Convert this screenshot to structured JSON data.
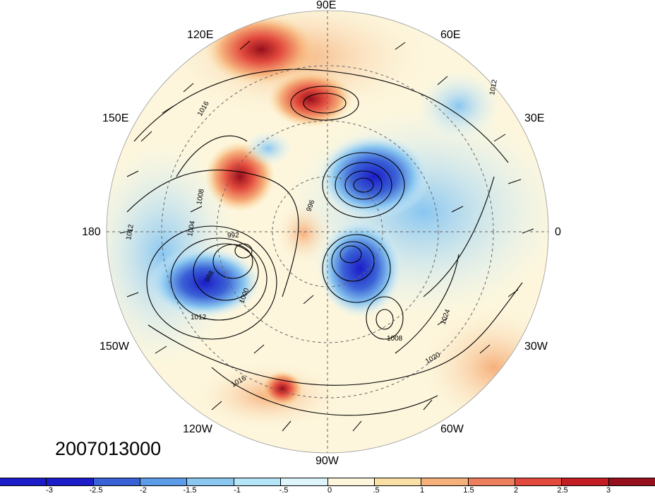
{
  "timestamp": "2007013000",
  "longitude_labels": {
    "e90": "90E",
    "e120": "120E",
    "e60": "60E",
    "e150": "150E",
    "e30": "30E",
    "w180": "180",
    "zero": "0",
    "w150": "150W",
    "w30": "30W",
    "w120": "120W",
    "w60": "60W",
    "w90": "90W"
  },
  "contour_labels": [
    "1016",
    "1012",
    "1008",
    "1004",
    "1000",
    "996",
    "992",
    "988",
    "1020",
    "1024",
    "1012",
    "1016",
    "1008",
    "1012"
  ],
  "colorbar": {
    "colors": [
      "#1c1cc8",
      "#3a62d6",
      "#5d9ce8",
      "#89c6f0",
      "#b5e6f8",
      "#def5fc",
      "#fdf6dc",
      "#fbe0a6",
      "#f6b07b",
      "#ee7f5e",
      "#e24a3d",
      "#c31d24",
      "#960f1c"
    ],
    "ticks": [
      "-3",
      "-2.5",
      "-2",
      "-1.5",
      "-1",
      "-.5",
      "0",
      ".5",
      "1",
      "1.5",
      "2",
      "2.5",
      "3"
    ]
  },
  "anomaly_features": [
    {
      "sign": "neg",
      "value": -3
    },
    {
      "sign": "neg",
      "value": -3
    },
    {
      "sign": "neg",
      "value": -3
    },
    {
      "sign": "neg",
      "value": -2
    },
    {
      "sign": "pos",
      "value": 3
    },
    {
      "sign": "pos",
      "value": 2.5
    },
    {
      "sign": "pos",
      "value": 2
    },
    {
      "sign": "pos",
      "value": 3
    },
    {
      "sign": "pos",
      "value": 1.5
    }
  ]
}
